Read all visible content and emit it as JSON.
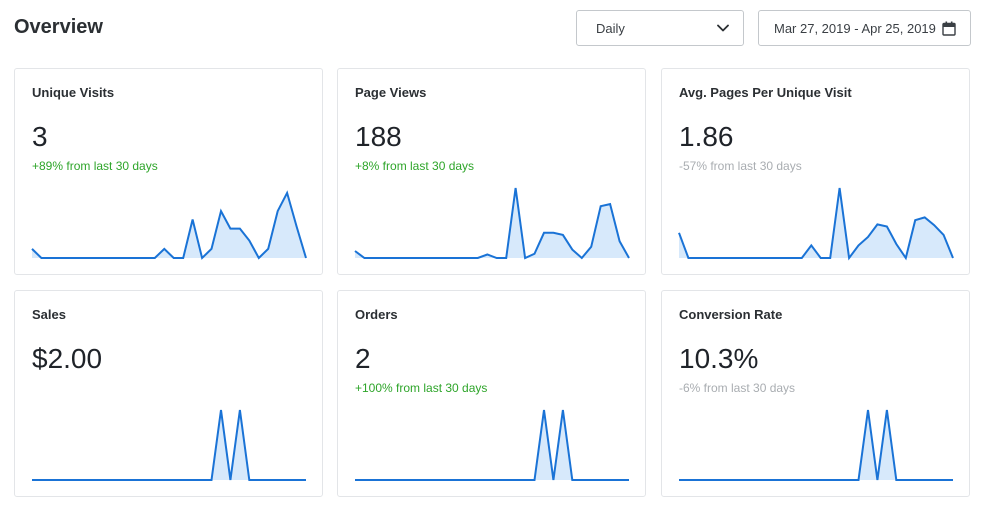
{
  "header": {
    "title": "Overview",
    "period": {
      "value": "Daily"
    },
    "date_range": {
      "value": "Mar 27, 2019 - Apr 25, 2019"
    }
  },
  "colors": {
    "line": "#1a73d6",
    "fill": "#d7e9fb",
    "positive": "#2ea52a",
    "muted": "#a9adb1"
  },
  "icons": {
    "dropdown": "chevron-down-icon",
    "date": "calendar-icon"
  },
  "metrics": [
    {
      "title": "Unique Visits",
      "value": "3",
      "change": "+89% from last 30 days",
      "trend": "up",
      "spark": [
        0.13,
        0,
        0,
        0,
        0,
        0,
        0,
        0,
        0,
        0,
        0,
        0,
        0,
        0,
        0.13,
        0,
        0,
        0.55,
        0,
        0.13,
        0.67,
        0.42,
        0.42,
        0.25,
        0,
        0.13,
        0.67,
        0.93,
        0.45,
        0
      ]
    },
    {
      "title": "Page Views",
      "value": "188",
      "change": "+8% from last 30 days",
      "trend": "up",
      "spark": [
        0.1,
        0,
        0,
        0,
        0,
        0,
        0,
        0,
        0,
        0,
        0,
        0,
        0,
        0,
        0.05,
        0,
        0,
        1,
        0,
        0.06,
        0.36,
        0.36,
        0.33,
        0.12,
        0,
        0.16,
        0.74,
        0.77,
        0.24,
        0
      ]
    },
    {
      "title": "Avg. Pages Per Unique Visit",
      "value": "1.86",
      "change": "-57% from last 30 days",
      "trend": "down",
      "spark": [
        0.36,
        0,
        0,
        0,
        0,
        0,
        0,
        0,
        0,
        0,
        0,
        0,
        0,
        0,
        0.18,
        0,
        0,
        1,
        0,
        0.18,
        0.3,
        0.48,
        0.45,
        0.2,
        0,
        0.54,
        0.58,
        0.47,
        0.33,
        0
      ]
    },
    {
      "title": "Sales",
      "value": "$2.00",
      "change": "",
      "trend": "none",
      "spark": [
        0,
        0,
        0,
        0,
        0,
        0,
        0,
        0,
        0,
        0,
        0,
        0,
        0,
        0,
        0,
        0,
        0,
        0,
        0,
        0,
        1,
        0,
        1,
        0,
        0,
        0,
        0,
        0,
        0,
        0
      ]
    },
    {
      "title": "Orders",
      "value": "2",
      "change": "+100% from last 30 days",
      "trend": "up",
      "spark": [
        0,
        0,
        0,
        0,
        0,
        0,
        0,
        0,
        0,
        0,
        0,
        0,
        0,
        0,
        0,
        0,
        0,
        0,
        0,
        0,
        1,
        0,
        1,
        0,
        0,
        0,
        0,
        0,
        0,
        0
      ]
    },
    {
      "title": "Conversion Rate",
      "value": "10.3%",
      "change": "-6% from last 30 days",
      "trend": "down",
      "spark": [
        0,
        0,
        0,
        0,
        0,
        0,
        0,
        0,
        0,
        0,
        0,
        0,
        0,
        0,
        0,
        0,
        0,
        0,
        0,
        0,
        1,
        0,
        1,
        0,
        0,
        0,
        0,
        0,
        0,
        0
      ]
    }
  ]
}
